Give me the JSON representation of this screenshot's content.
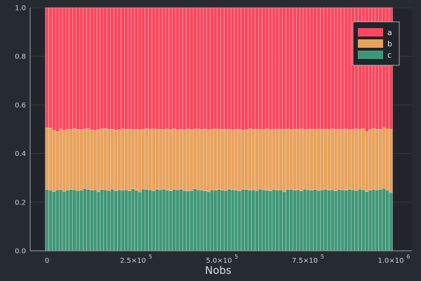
{
  "chart_data": {
    "type": "bar",
    "stacked": true,
    "normalized": true,
    "xlabel": "Nobs",
    "ylabel": "",
    "title": "",
    "xlim": [
      0,
      1000000
    ],
    "ylim": [
      0,
      1.0
    ],
    "x_ticks": [
      {
        "value": 0,
        "mantissa": "0",
        "exponent": ""
      },
      {
        "value": 250000,
        "mantissa": "2.5×10",
        "exponent": "5"
      },
      {
        "value": 500000,
        "mantissa": "5.0×10",
        "exponent": "5"
      },
      {
        "value": 750000,
        "mantissa": "7.5×10",
        "exponent": "5"
      },
      {
        "value": 1000000,
        "mantissa": "1.0×10",
        "exponent": "6"
      }
    ],
    "y_ticks": [
      "0.0",
      "0.2",
      "0.4",
      "0.6",
      "0.8",
      "1.0"
    ],
    "grid": true,
    "legend_position": "top-right",
    "x_start": 0,
    "x_step": 10000,
    "n_bars": 101,
    "series": [
      {
        "name": "a",
        "color": "#f8485e"
      },
      {
        "name": "b",
        "color": "#e9a25a"
      },
      {
        "name": "c",
        "color": "#3f9778"
      }
    ],
    "c_values": [
      0.252,
      0.249,
      0.244,
      0.251,
      0.252,
      0.245,
      0.249,
      0.252,
      0.251,
      0.248,
      0.249,
      0.256,
      0.252,
      0.249,
      0.251,
      0.243,
      0.252,
      0.251,
      0.248,
      0.254,
      0.247,
      0.251,
      0.249,
      0.251,
      0.247,
      0.255,
      0.249,
      0.242,
      0.254,
      0.252,
      0.251,
      0.247,
      0.253,
      0.251,
      0.254,
      0.249,
      0.247,
      0.252,
      0.251,
      0.254,
      0.248,
      0.246,
      0.248,
      0.255,
      0.251,
      0.249,
      0.247,
      0.243,
      0.251,
      0.249,
      0.253,
      0.249,
      0.248,
      0.254,
      0.251,
      0.249,
      0.247,
      0.253,
      0.252,
      0.249,
      0.251,
      0.248,
      0.254,
      0.251,
      0.249,
      0.247,
      0.252,
      0.249,
      0.251,
      0.243,
      0.252,
      0.253,
      0.249,
      0.251,
      0.247,
      0.254,
      0.251,
      0.249,
      0.252,
      0.248,
      0.251,
      0.253,
      0.249,
      0.251,
      0.247,
      0.252,
      0.251,
      0.249,
      0.253,
      0.251,
      0.248,
      0.254,
      0.251,
      0.244,
      0.249,
      0.252,
      0.251,
      0.253,
      0.257,
      0.249,
      0.24
    ],
    "b_values": [
      0.254,
      0.256,
      0.252,
      0.24,
      0.249,
      0.25,
      0.251,
      0.247,
      0.252,
      0.251,
      0.25,
      0.245,
      0.25,
      0.248,
      0.244,
      0.256,
      0.25,
      0.252,
      0.252,
      0.246,
      0.25,
      0.247,
      0.252,
      0.249,
      0.253,
      0.244,
      0.251,
      0.257,
      0.246,
      0.25,
      0.249,
      0.254,
      0.247,
      0.249,
      0.245,
      0.252,
      0.252,
      0.25,
      0.247,
      0.246,
      0.25,
      0.255,
      0.251,
      0.246,
      0.25,
      0.25,
      0.253,
      0.255,
      0.249,
      0.252,
      0.247,
      0.251,
      0.252,
      0.246,
      0.247,
      0.251,
      0.253,
      0.244,
      0.246,
      0.253,
      0.249,
      0.252,
      0.246,
      0.248,
      0.253,
      0.252,
      0.248,
      0.251,
      0.249,
      0.257,
      0.249,
      0.246,
      0.251,
      0.249,
      0.254,
      0.245,
      0.249,
      0.251,
      0.248,
      0.253,
      0.249,
      0.247,
      0.251,
      0.25,
      0.253,
      0.248,
      0.249,
      0.252,
      0.246,
      0.249,
      0.253,
      0.246,
      0.251,
      0.246,
      0.25,
      0.251,
      0.249,
      0.247,
      0.25,
      0.252,
      0.26
    ]
  }
}
